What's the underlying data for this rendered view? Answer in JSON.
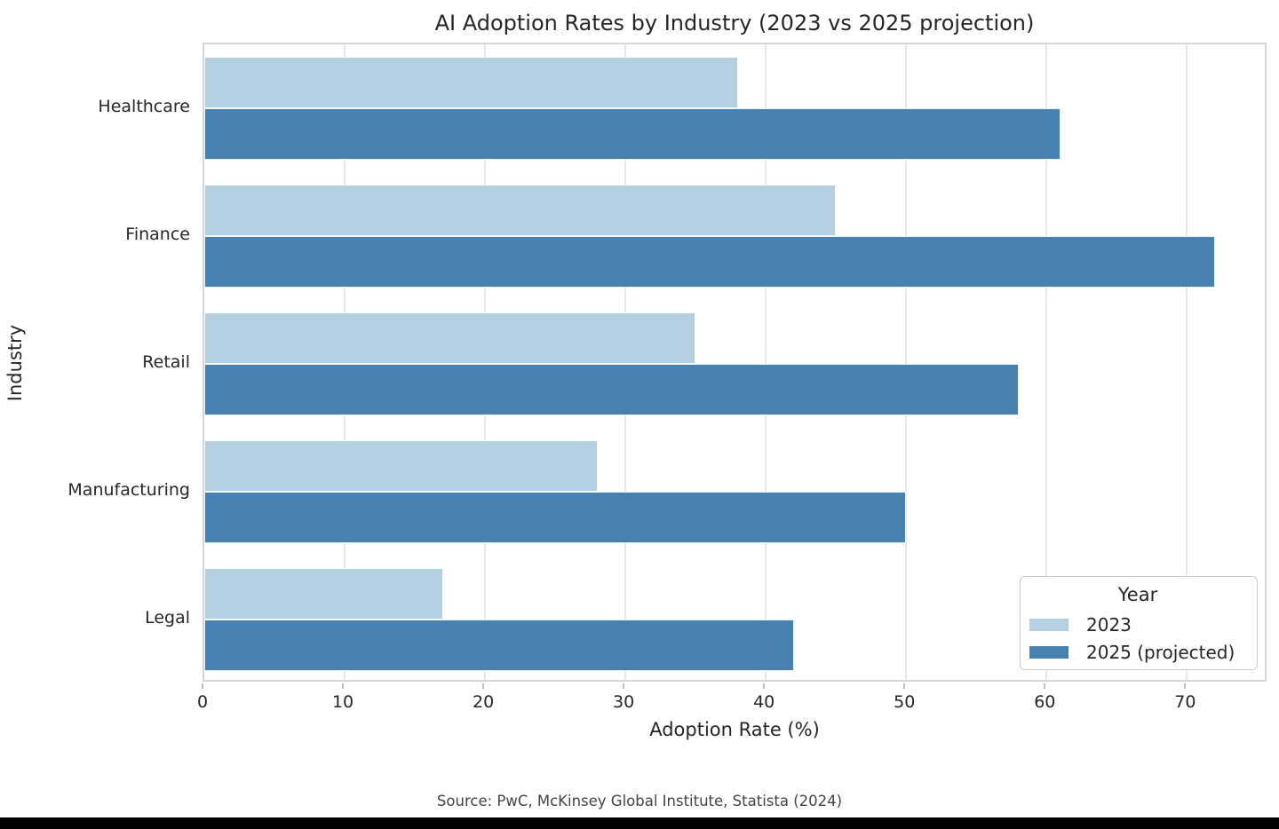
{
  "chart_data": {
    "type": "bar",
    "orientation": "horizontal",
    "title": "AI Adoption Rates by Industry (2023 vs 2025 projection)",
    "xlabel": "Adoption Rate (%)",
    "ylabel": "Industry",
    "categories": [
      "Healthcare",
      "Finance",
      "Retail",
      "Manufacturing",
      "Legal"
    ],
    "series": [
      {
        "name": "2023",
        "color": "#b5cfe3",
        "values": [
          38,
          45,
          35,
          28,
          17
        ]
      },
      {
        "name": "2025 (projected)",
        "color": "#4781b0",
        "values": [
          61,
          72,
          58,
          50,
          42
        ]
      }
    ],
    "xlim": [
      0,
      75.8
    ],
    "xticks": [
      0,
      10,
      20,
      30,
      40,
      50,
      60,
      70
    ],
    "grid": "vertical",
    "legend": {
      "title": "Year",
      "position": "lower right"
    },
    "source": "Source: PwC, McKinsey Global Institute, Statista (2024)"
  },
  "colors": {
    "series_2023": "#b5cfe3",
    "series_2025_projected": "#4781b0",
    "gridline": "#e9e9e9",
    "spine": "#d6d6d6",
    "text": "#262626",
    "source_text": "#444444",
    "background": "#ffffff",
    "bottom_bar": "#000000"
  }
}
